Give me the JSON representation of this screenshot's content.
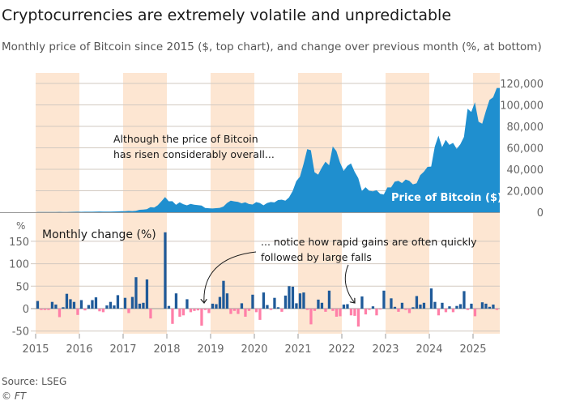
{
  "title": "Cryptocurrencies are extremely volatile and unpredictable",
  "subtitle": "Monthly price of Bitcoin since 2015 ($, top chart), and change over previous month (%, at bottom)",
  "source": "Source: LSEG",
  "credit": "© FT",
  "colors": {
    "area": "#1f8fcf",
    "gain": "#1f5a99",
    "loss": "#ff7fa8",
    "band": "#fde6d2",
    "grid": "#d2c9c0"
  },
  "chart_data": [
    {
      "type": "area",
      "series_label": "Price of Bitcoin ($)",
      "annotation": [
        "Although the price of Bitcoin",
        "has risen considerably overall..."
      ],
      "x_start": "2015-01",
      "x_frequency": "monthly",
      "ylim": [
        0,
        120000
      ],
      "yticks": [
        "0",
        "20,000",
        "40,000",
        "60,000",
        "80,000",
        "100,000",
        "120,000"
      ],
      "values": [
        220,
        250,
        250,
        230,
        240,
        250,
        280,
        230,
        240,
        310,
        380,
        430,
        370,
        440,
        420,
        450,
        530,
        670,
        620,
        570,
        610,
        700,
        740,
        960,
        970,
        1190,
        1080,
        1350,
        2300,
        2480,
        2880,
        4700,
        4340,
        6470,
        10200,
        14200,
        10200,
        10300,
        6900,
        9200,
        7500,
        6400,
        7700,
        7000,
        6600,
        6300,
        4000,
        3700,
        3500,
        3800,
        4100,
        5300,
        8600,
        10800,
        10100,
        9600,
        8300,
        9200,
        7600,
        7200,
        9400,
        8600,
        6400,
        8600,
        9500,
        9100,
        11300,
        11700,
        10800,
        13800,
        19700,
        29000,
        33100,
        45100,
        58800,
        57700,
        37300,
        35000,
        41600,
        47100,
        43800,
        61300,
        57000,
        46300,
        38500,
        43200,
        45500,
        37700,
        31800,
        19800,
        23300,
        20000,
        19400,
        20500,
        17200,
        16500,
        23100,
        23100,
        28500,
        29200,
        27200,
        30500,
        29200,
        26000,
        27000,
        34500,
        37700,
        42300,
        42600,
        61200,
        71300,
        60600,
        67500,
        62700,
        64600,
        59000,
        63300,
        70200,
        96400,
        93400,
        102400,
        84400,
        82500,
        94200,
        104600,
        107100,
        115800
      ]
    },
    {
      "type": "bar",
      "title": "Monthly change (%)",
      "unit": "%",
      "annotation": [
        "... notice how rapid gains are often quickly",
        "followed by large falls"
      ],
      "x_start": "2015-01",
      "x_frequency": "monthly",
      "ylim": [
        -50,
        175
      ],
      "yticks": [
        "-50",
        "0",
        "50",
        "100",
        "150"
      ],
      "xticks": [
        "2015",
        "2016",
        "2017",
        "2018",
        "2019",
        "2020",
        "2021",
        "2022",
        "2023",
        "2024",
        "2025"
      ],
      "values": [
        17,
        -3,
        -3,
        -3,
        15,
        9,
        -19,
        3,
        33,
        21,
        15,
        -14,
        19,
        -4,
        8,
        19,
        25,
        -6,
        -8,
        7,
        15,
        7,
        30,
        1,
        24,
        -10,
        26,
        70,
        11,
        13,
        65,
        -22,
        0,
        0,
        0,
        170,
        6,
        -34,
        34,
        -18,
        -15,
        21,
        -8,
        -5,
        -4,
        -38,
        -3,
        -10,
        11,
        10,
        26,
        62,
        34,
        -12,
        -5,
        -12,
        12,
        -18,
        -5,
        31,
        -8,
        -25,
        36,
        8,
        -3,
        24,
        3,
        -7,
        29,
        50,
        49,
        12,
        34,
        36,
        -3,
        -35,
        -5,
        20,
        13,
        -7,
        40,
        -5,
        -18,
        -17,
        9,
        10,
        -15,
        -16,
        -40,
        27,
        -13,
        -3,
        5,
        -15,
        -2,
        40,
        0,
        23,
        4,
        -7,
        13,
        -3,
        -10,
        3,
        28,
        9,
        13,
        0,
        45,
        15,
        -15,
        13,
        -8,
        5,
        -8,
        6,
        10,
        39,
        -3,
        11,
        -17,
        -1,
        14,
        11,
        4,
        9,
        -3
      ]
    }
  ]
}
